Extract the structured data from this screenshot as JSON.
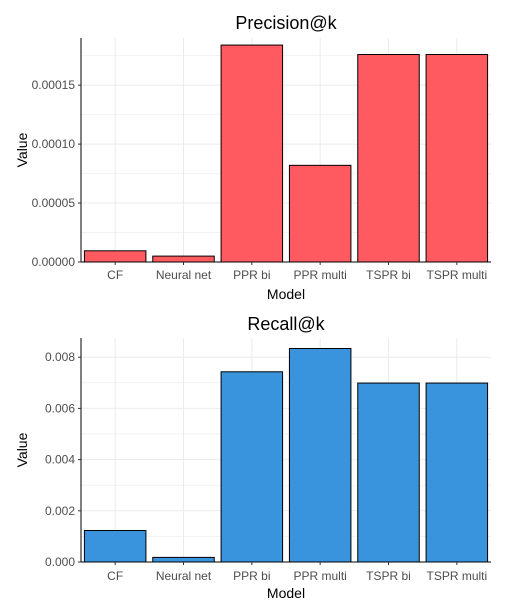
{
  "chart_data": [
    {
      "type": "bar",
      "title": "Precision@k",
      "xlabel": "Model",
      "ylabel": "Value",
      "categories": [
        "CF",
        "Neural net",
        "PPR bi",
        "PPR multi",
        "TSPR bi",
        "TSPR multi"
      ],
      "values": [
        9.5e-06,
        5e-06,
        0.000184,
        8.2e-05,
        0.000176,
        0.000176
      ],
      "ylim": [
        0,
        0.00019
      ],
      "yticks": [
        0,
        5e-05,
        0.0001,
        0.00015
      ],
      "ytick_labels": [
        "0.00000",
        "0.00005",
        "0.00010",
        "0.00015"
      ],
      "bar_color": "#FF5A5F",
      "grid": true
    },
    {
      "type": "bar",
      "title": "Recall@k",
      "xlabel": "Model",
      "ylabel": "Value",
      "categories": [
        "CF",
        "Neural net",
        "PPR bi",
        "PPR multi",
        "TSPR bi",
        "TSPR multi"
      ],
      "values": [
        0.00123,
        0.00018,
        0.00743,
        0.00834,
        0.00699,
        0.00699
      ],
      "ylim": [
        0,
        0.00875
      ],
      "yticks": [
        0,
        0.002,
        0.004,
        0.006,
        0.008
      ],
      "ytick_labels": [
        "0.000",
        "0.002",
        "0.004",
        "0.006",
        "0.008"
      ],
      "bar_color": "#3A93DD",
      "grid": true
    }
  ]
}
